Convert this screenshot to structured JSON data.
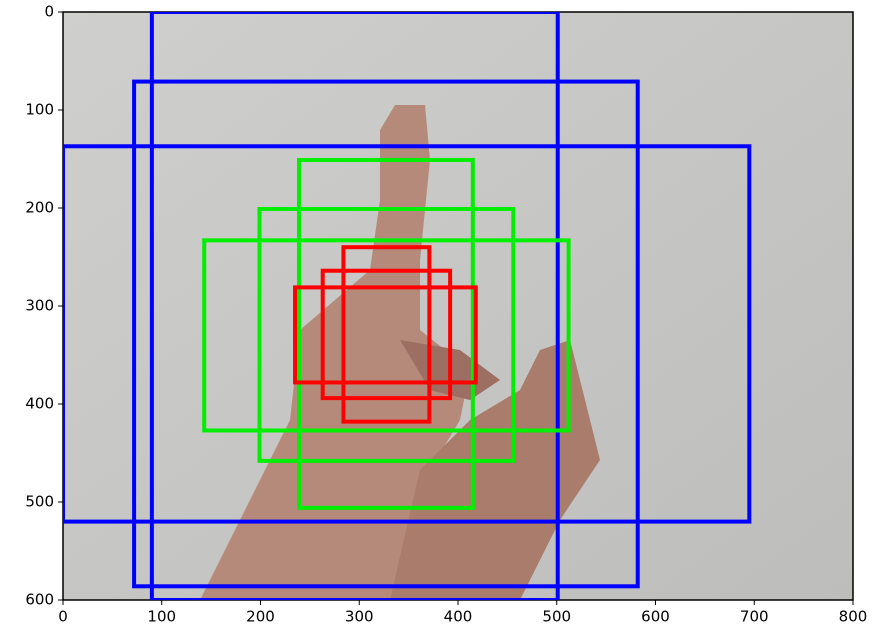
{
  "chart_data": {
    "type": "boxes",
    "xlim": [
      0,
      800
    ],
    "ylim": [
      600,
      0
    ],
    "xticks": [
      0,
      100,
      200,
      300,
      400,
      500,
      600,
      700,
      800
    ],
    "yticks": [
      0,
      100,
      200,
      300,
      400,
      500,
      600
    ],
    "series": [
      {
        "color": "#0000ff",
        "boxes": [
          [
            0,
            137,
            695,
            520
          ],
          [
            72,
            71,
            582,
            586
          ],
          [
            90,
            0,
            501,
            600
          ]
        ]
      },
      {
        "color": "#00ee00",
        "boxes": [
          [
            239,
            151,
            415,
            506
          ],
          [
            199,
            201,
            456,
            458
          ],
          [
            143,
            233,
            512,
            427
          ]
        ]
      },
      {
        "color": "#ff0000",
        "boxes": [
          [
            284,
            240,
            371,
            418
          ],
          [
            263,
            264,
            392,
            394
          ],
          [
            235,
            281,
            418,
            378
          ]
        ]
      }
    ]
  }
}
